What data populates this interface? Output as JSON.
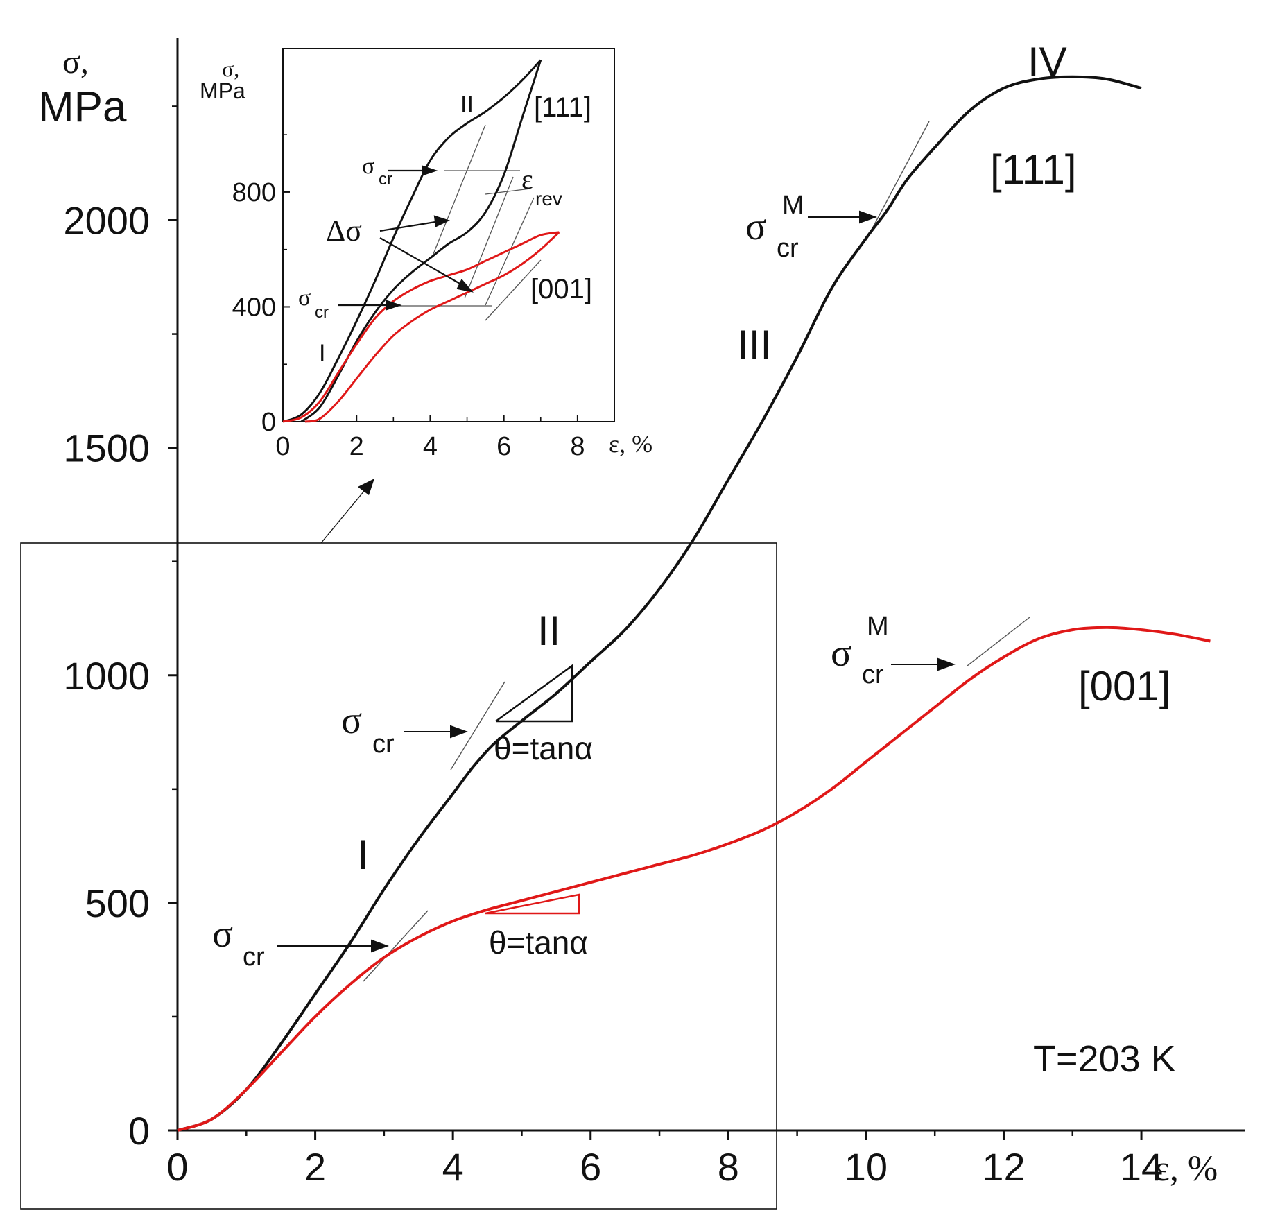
{
  "colors": {
    "series_111": "#111111",
    "series_001": "#e01818",
    "axis": "#111111",
    "guide": "#444444"
  },
  "chart_data": [
    {
      "name": "main",
      "type": "line",
      "xlabel": "ε, %",
      "ylabel_symbol": "σ,",
      "ylabel_unit": "MPa",
      "xlim": [
        0,
        15.5
      ],
      "ylim": [
        0,
        2400
      ],
      "xticks": [
        0,
        2,
        4,
        6,
        8,
        10,
        12,
        14
      ],
      "xtick_labels": [
        "0",
        "2",
        "4",
        "6",
        "8",
        "10",
        "12",
        "14"
      ],
      "yticks": [
        0,
        500,
        1000,
        1500,
        2000
      ],
      "ytick_labels": [
        "0",
        "500",
        "1000",
        "1500",
        "2000"
      ],
      "series": [
        {
          "name": "[111]",
          "color": "#111111",
          "x": [
            0,
            0.5,
            1,
            1.5,
            2,
            2.5,
            3,
            3.5,
            4,
            4.3,
            4.6,
            5,
            5.5,
            6,
            6.5,
            7,
            7.5,
            8,
            8.5,
            9,
            9.5,
            10,
            10.3,
            10.6,
            11,
            11.5,
            12,
            12.5,
            13,
            13.5,
            14
          ],
          "y": [
            0,
            25,
            90,
            190,
            300,
            410,
            530,
            640,
            740,
            800,
            850,
            900,
            960,
            1030,
            1100,
            1190,
            1300,
            1430,
            1560,
            1700,
            1850,
            1960,
            2020,
            2090,
            2160,
            2240,
            2290,
            2310,
            2315,
            2310,
            2290
          ]
        },
        {
          "name": "[001]",
          "color": "#e01818",
          "x": [
            0,
            0.5,
            1,
            1.5,
            2,
            2.5,
            3,
            3.5,
            4,
            4.5,
            5,
            5.5,
            6,
            6.5,
            7,
            7.5,
            8,
            8.5,
            9,
            9.5,
            10,
            10.5,
            11,
            11.5,
            12,
            12.5,
            13,
            13.5,
            14,
            14.5,
            15
          ],
          "y": [
            0,
            25,
            90,
            170,
            250,
            320,
            380,
            425,
            460,
            485,
            505,
            525,
            545,
            565,
            585,
            605,
            630,
            660,
            700,
            750,
            810,
            870,
            930,
            990,
            1040,
            1080,
            1100,
            1105,
            1100,
            1090,
            1075
          ]
        }
      ],
      "annotations": {
        "stage_I": "I",
        "stage_II": "II",
        "stage_III": "III",
        "stage_IV": "IV",
        "sigma": "σ",
        "cr": "cr",
        "M": "M",
        "theta_tan": "θ=tanα",
        "temperature": "T=203 K"
      }
    },
    {
      "name": "inset",
      "type": "line",
      "xlabel": "ε, %",
      "ylabel_symbol": "σ,",
      "ylabel_unit": "MPa",
      "xlim": [
        0,
        9
      ],
      "ylim": [
        0,
        1300
      ],
      "xticks": [
        0,
        2,
        4,
        6,
        8
      ],
      "xtick_labels": [
        "0",
        "2",
        "4",
        "6",
        "8"
      ],
      "yticks": [
        0,
        400,
        800
      ],
      "ytick_labels": [
        "0",
        "400",
        "800"
      ],
      "series": [
        {
          "name": "[111] loading",
          "color": "#111111",
          "x": [
            0,
            0.5,
            1,
            1.5,
            2,
            2.5,
            3,
            3.5,
            4,
            4.5,
            5,
            5.5,
            6,
            6.5,
            7
          ],
          "y": [
            0,
            25,
            100,
            220,
            350,
            490,
            640,
            780,
            910,
            990,
            1040,
            1080,
            1130,
            1190,
            1260
          ]
        },
        {
          "name": "[111] unloading",
          "color": "#111111",
          "x": [
            7,
            6.5,
            6,
            5.5,
            5,
            4.5,
            4,
            3.5,
            3,
            2.5,
            2,
            1.5,
            1,
            0.5
          ],
          "y": [
            1260,
            1060,
            860,
            730,
            660,
            620,
            570,
            520,
            460,
            380,
            280,
            160,
            50,
            0
          ]
        },
        {
          "name": "[001] loading",
          "color": "#e01818",
          "x": [
            0,
            0.5,
            1,
            1.5,
            2,
            2.5,
            3,
            3.5,
            4,
            4.5,
            5,
            5.5,
            6,
            6.5,
            7,
            7.5
          ],
          "y": [
            0,
            15,
            70,
            170,
            270,
            360,
            420,
            460,
            490,
            510,
            530,
            560,
            590,
            620,
            650,
            660
          ]
        },
        {
          "name": "[001] unloading",
          "color": "#e01818",
          "x": [
            7.5,
            7,
            6.5,
            6,
            5.5,
            5,
            4.5,
            4,
            3.5,
            3,
            2.5,
            2,
            1.5,
            1,
            0.6
          ],
          "y": [
            660,
            600,
            550,
            510,
            480,
            450,
            420,
            390,
            350,
            300,
            230,
            150,
            70,
            10,
            0
          ]
        }
      ],
      "annotations": {
        "stage_I": "I",
        "stage_II": "II",
        "label_111": "[111]",
        "label_001": "[001]",
        "delta_sigma": "Δσ",
        "epsilon": "ε",
        "rev": "rev",
        "sigma": "σ",
        "cr": "cr"
      }
    }
  ]
}
